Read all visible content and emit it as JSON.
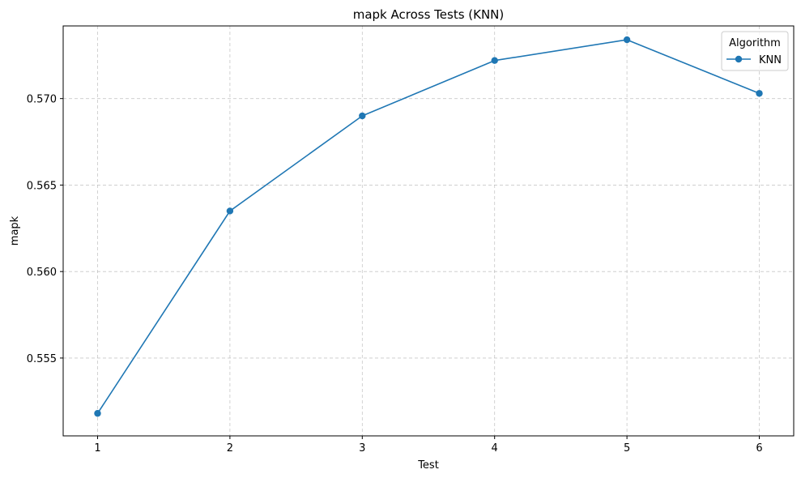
{
  "chart_data": {
    "type": "line",
    "title": "mapk Across Tests (KNN)",
    "xlabel": "Test",
    "ylabel": "mapk",
    "x": [
      1,
      2,
      3,
      4,
      5,
      6
    ],
    "xticks": [
      1,
      2,
      3,
      4,
      5,
      6
    ],
    "yticks": [
      0.555,
      0.56,
      0.565,
      0.57
    ],
    "ytick_labels": [
      "0.555",
      "0.560",
      "0.565",
      "0.570"
    ],
    "xlim": [
      0.74,
      6.26
    ],
    "ylim": [
      0.5505,
      0.5742
    ],
    "grid": true,
    "grid_style": "dashed",
    "legend": {
      "title": "Algorithm",
      "placement": "top-right"
    },
    "series": [
      {
        "name": "KNN",
        "color": "#1f77b4",
        "marker": "circle",
        "values": [
          0.5518,
          0.5635,
          0.569,
          0.5722,
          0.5734,
          0.5703
        ]
      }
    ]
  }
}
